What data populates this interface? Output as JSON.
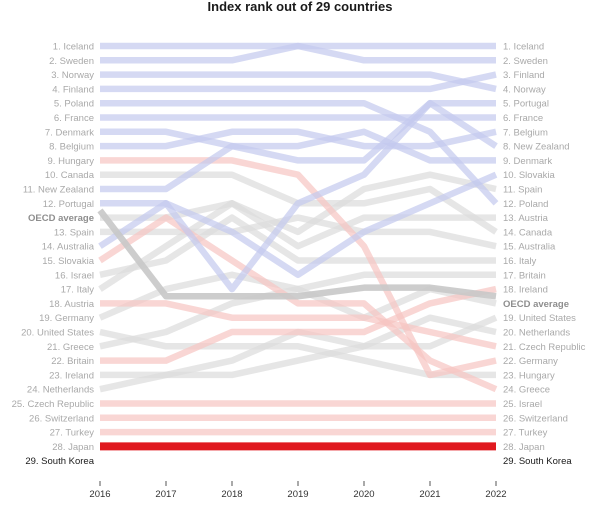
{
  "chart_data": {
    "type": "line",
    "title": "Index rank out of 29 countries",
    "x": [
      "2016",
      "2017",
      "2018",
      "2019",
      "2020",
      "2021",
      "2022"
    ],
    "ylim": [
      1,
      30
    ],
    "y_inverted": true,
    "left_labels": [
      "1. Iceland",
      "2. Sweden",
      "3. Norway",
      "4. Finland",
      "5. Poland",
      "6. France",
      "7. Denmark",
      "8. Belgium",
      "9. Hungary",
      "10. Canada",
      "11. New Zealand",
      "12. Portugal",
      "OECD average",
      "13. Spain",
      "14. Australia",
      "15. Slovakia",
      "16. Israel",
      "17. Italy",
      "18. Austria",
      "19. Germany",
      "20. United States",
      "21. Greece",
      "22. Britain",
      "23. Ireland",
      "24. Netherlands",
      "25. Czech Republic",
      "26. Switzerland",
      "27. Turkey",
      "28. Japan",
      "29. South Korea"
    ],
    "right_labels": [
      "1. Iceland",
      "2. Sweden",
      "3. Finland",
      "4. Norway",
      "5. Portugal",
      "6. France",
      "7. Belgium",
      "8. New Zealand",
      "9. Denmark",
      "10. Slovakia",
      "11. Spain",
      "12. Poland",
      "13. Austria",
      "14. Canada",
      "15. Australia",
      "16. Italy",
      "17. Britain",
      "18. Ireland",
      "OECD average",
      "19. United States",
      "20. Netherlands",
      "21. Czech Republic",
      "22. Germany",
      "23. Hungary",
      "24. Greece",
      "25. Israel",
      "26. Switzerland",
      "27. Turkey",
      "28. Japan",
      "29. South Korea"
    ],
    "highlight": "South Korea",
    "benchmark": "OECD average",
    "colors": {
      "top_group": "#c3c9ee",
      "middle_group": "#dcdcdc",
      "bottom_group": "#f6c4c2",
      "benchmark": "#c8c8c8",
      "highlight": "#e0191f"
    },
    "series": [
      {
        "name": "Iceland",
        "group": "top",
        "values": [
          1,
          1,
          1,
          1,
          1,
          1,
          1
        ]
      },
      {
        "name": "Sweden",
        "group": "top",
        "values": [
          2,
          2,
          2,
          1,
          2,
          2,
          2
        ]
      },
      {
        "name": "Norway",
        "group": "top",
        "values": [
          3,
          3,
          3,
          3,
          3,
          3,
          4
        ]
      },
      {
        "name": "Finland",
        "group": "top",
        "values": [
          4,
          4,
          4,
          4,
          4,
          4,
          3
        ]
      },
      {
        "name": "Poland",
        "group": "top",
        "values": [
          5,
          5,
          5,
          5,
          5,
          7,
          12
        ]
      },
      {
        "name": "France",
        "group": "top",
        "values": [
          6,
          6,
          6,
          6,
          6,
          6,
          6
        ]
      },
      {
        "name": "Denmark",
        "group": "top",
        "values": [
          7,
          7,
          8,
          8,
          7,
          9,
          9
        ]
      },
      {
        "name": "Belgium",
        "group": "top",
        "values": [
          8,
          8,
          7,
          7,
          8,
          8,
          7
        ]
      },
      {
        "name": "Hungary",
        "group": "bottom",
        "values": [
          9,
          9,
          9,
          10,
          15,
          24,
          23
        ]
      },
      {
        "name": "Canada",
        "group": "middle",
        "values": [
          10,
          10,
          10,
          12,
          12,
          11,
          14
        ]
      },
      {
        "name": "New Zealand",
        "group": "top",
        "values": [
          11,
          11,
          8,
          9,
          9,
          5,
          8
        ]
      },
      {
        "name": "Portugal",
        "group": "top",
        "values": [
          12,
          12,
          18,
          12,
          10,
          5,
          5
        ]
      },
      {
        "name": "Spain",
        "group": "middle",
        "values": [
          13,
          13,
          12,
          14,
          11,
          10,
          11
        ]
      },
      {
        "name": "Australia",
        "group": "middle",
        "values": [
          14,
          14,
          14,
          13,
          14,
          14,
          15
        ]
      },
      {
        "name": "Slovakia",
        "group": "top",
        "values": [
          15,
          12,
          14,
          17,
          14,
          12,
          10
        ]
      },
      {
        "name": "Israel",
        "group": "bottom",
        "values": [
          16,
          13,
          16,
          19,
          19,
          23,
          25
        ]
      },
      {
        "name": "Italy",
        "group": "middle",
        "values": [
          17,
          16,
          13,
          16,
          16,
          16,
          16
        ]
      },
      {
        "name": "Austria",
        "group": "middle",
        "values": [
          18,
          15,
          12,
          15,
          13,
          13,
          13
        ]
      },
      {
        "name": "Germany",
        "group": "bottom",
        "values": [
          19,
          19,
          20,
          20,
          20,
          21,
          22
        ]
      },
      {
        "name": "United States",
        "group": "middle",
        "values": [
          20,
          18,
          17,
          18,
          20,
          18,
          19
        ]
      },
      {
        "name": "Greece",
        "group": "middle",
        "values": [
          21,
          22,
          22,
          22,
          23,
          24,
          24
        ]
      },
      {
        "name": "Britain",
        "group": "middle",
        "values": [
          22,
          21,
          19,
          18,
          17,
          17,
          17
        ]
      },
      {
        "name": "Ireland",
        "group": "bottom",
        "values": [
          23,
          23,
          21,
          21,
          21,
          19,
          18
        ]
      },
      {
        "name": "Netherlands",
        "group": "middle",
        "values": [
          24,
          24,
          23,
          21,
          22,
          22,
          20
        ]
      },
      {
        "name": "Czech Republic",
        "group": "middle",
        "values": [
          25,
          24,
          24,
          23,
          22,
          20,
          21
        ]
      },
      {
        "name": "Switzerland",
        "group": "bottom",
        "values": [
          26,
          26,
          26,
          26,
          26,
          26,
          26
        ]
      },
      {
        "name": "Turkey",
        "group": "bottom",
        "values": [
          27,
          27,
          27,
          27,
          27,
          27,
          27
        ]
      },
      {
        "name": "Japan",
        "group": "bottom",
        "values": [
          28,
          28,
          28,
          28,
          28,
          28,
          28
        ]
      },
      {
        "name": "OECD average",
        "group": "benchmark",
        "values": [
          12.5,
          18.5,
          18.5,
          18.5,
          17.9,
          17.9,
          18.5
        ]
      },
      {
        "name": "South Korea",
        "group": "highlight",
        "values": [
          29,
          29,
          29,
          29,
          29,
          29,
          29
        ]
      }
    ]
  }
}
